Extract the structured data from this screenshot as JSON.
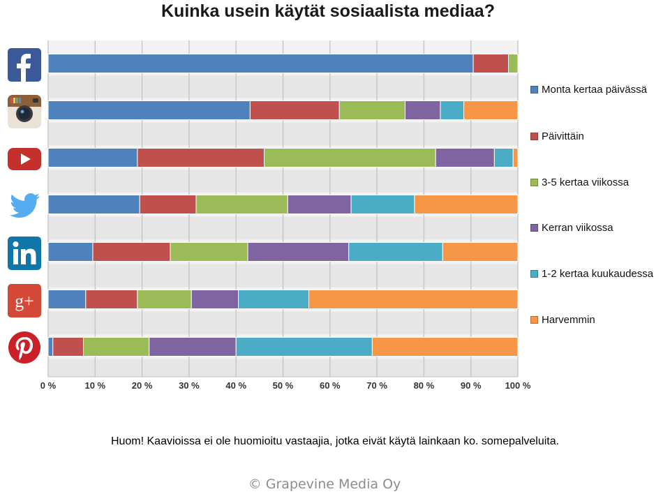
{
  "chart_data": {
    "type": "bar",
    "orientation": "horizontal",
    "stacked": true,
    "title": "Kuinka usein käytät sosiaalista mediaa?",
    "categories": [
      "Facebook",
      "Instagram",
      "YouTube",
      "Twitter",
      "LinkedIn",
      "Google+",
      "Pinterest"
    ],
    "xlim": [
      0,
      100
    ],
    "xticks": [
      "0 %",
      "10 %",
      "20 %",
      "30 %",
      "40 %",
      "50 %",
      "60 %",
      "70 %",
      "80 %",
      "90 %",
      "100 %"
    ],
    "grid": true,
    "legend_position": "right",
    "series": [
      {
        "name": "Monta kertaa päivässä",
        "color": "#4f81bd",
        "values": [
          90.5,
          43,
          19,
          19.5,
          9.5,
          8,
          1
        ]
      },
      {
        "name": "Päivittäin",
        "color": "#c0504d",
        "values": [
          7.5,
          19,
          27,
          12,
          16.5,
          11,
          6.5
        ]
      },
      {
        "name": "3-5 kertaa viikossa",
        "color": "#9bbb59",
        "values": [
          2,
          14,
          36.5,
          19.5,
          16.5,
          11.5,
          14
        ]
      },
      {
        "name": "Kerran viikossa",
        "color": "#8064a2",
        "values": [
          0,
          7.5,
          12.5,
          13.5,
          21.5,
          10,
          18.5
        ]
      },
      {
        "name": "1-2 kertaa kuukaudessa",
        "color": "#4bacc6",
        "values": [
          0,
          5,
          4,
          13.5,
          20,
          15,
          29
        ]
      },
      {
        "name": "Harvemmin",
        "color": "#f79646",
        "values": [
          0,
          11.5,
          1,
          22,
          16,
          44.5,
          31
        ]
      }
    ]
  },
  "icons": [
    {
      "name": "facebook-icon",
      "glyph": "f",
      "bg": "#3b5998"
    },
    {
      "name": "instagram-icon",
      "glyph": "",
      "bg": "#8a6a50"
    },
    {
      "name": "youtube-icon",
      "glyph": "",
      "bg": "#c4302b"
    },
    {
      "name": "twitter-icon",
      "glyph": "",
      "bg": "#55acee"
    },
    {
      "name": "linkedin-icon",
      "glyph": "in",
      "bg": "#0e76a8"
    },
    {
      "name": "google-plus-icon",
      "glyph": "g+",
      "bg": "#d34836"
    },
    {
      "name": "pinterest-icon",
      "glyph": "P",
      "bg": "#cb2027"
    }
  ],
  "note": "Huom! Kaavioissa ei ole huomioitu vastaajia, jotka eivät käytä lainkaan ko. somepalveluita.",
  "footer": "© Grapevine Media Oy"
}
